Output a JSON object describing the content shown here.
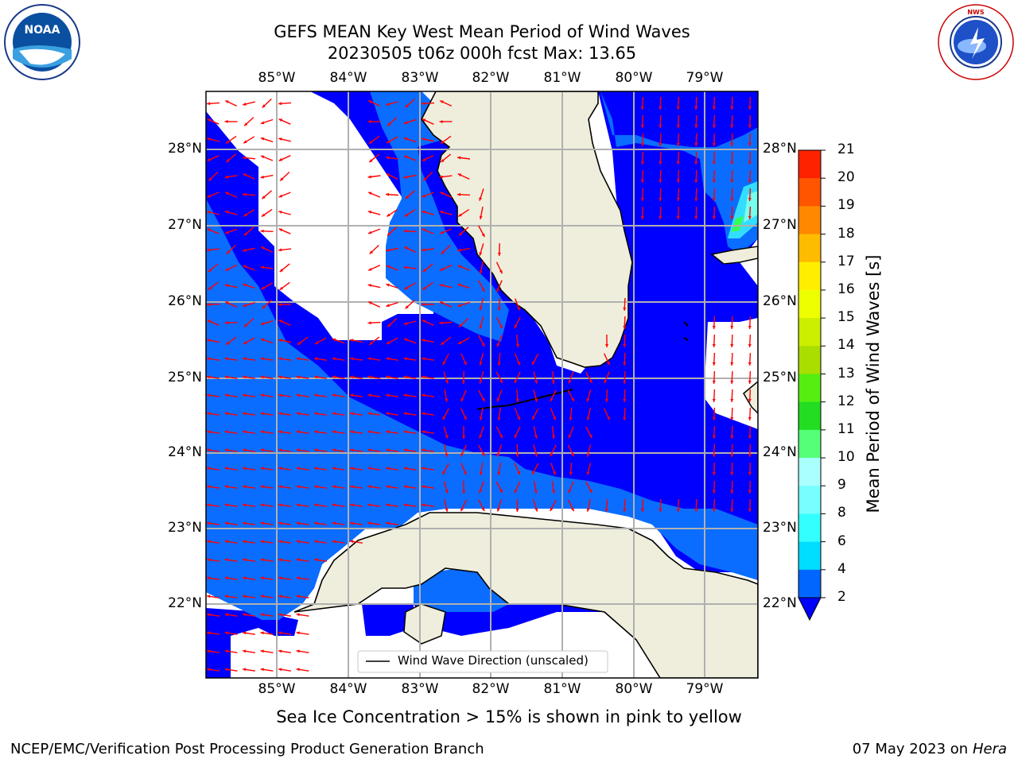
{
  "title_line1": "GEFS MEAN Key West Mean Period of Wind Waves",
  "title_line2": "20230505 t06z 000h fcst   Max: 13.65",
  "logos": {
    "left": "NOAA",
    "right": "NATIONAL WEATHER SERVICE"
  },
  "lon_labels": [
    "85°W",
    "84°W",
    "83°W",
    "82°W",
    "81°W",
    "80°W",
    "79°W"
  ],
  "lat_labels": [
    "28°N",
    "27°N",
    "26°N",
    "25°N",
    "24°N",
    "23°N",
    "22°N"
  ],
  "colorbar": {
    "label": "Mean Period of Wind Waves [s]",
    "levels": [
      2,
      4,
      6,
      8,
      9,
      10,
      11,
      12,
      13,
      14,
      15,
      16,
      17,
      18,
      19,
      20,
      21
    ],
    "colors": [
      "#0066ff",
      "#00ddff",
      "#33ffff",
      "#77ffff",
      "#aaffff",
      "#55ff77",
      "#22dd22",
      "#55ee11",
      "#aadd00",
      "#ccee00",
      "#eeff00",
      "#ffee00",
      "#ffbb00",
      "#ff8800",
      "#ff5500",
      "#ff2200",
      "#ff0000"
    ],
    "under_color": "#0000ff"
  },
  "legend_label": "Wind Wave Direction (unscaled)",
  "subtitle": "Sea Ice Concentration > 15% is shown in pink to yellow",
  "footer_left": "NCEP/EMC/Verification Post Processing Product Generation Branch",
  "footer_date": "07 May 2023 on",
  "footer_machine": "Hera"
}
